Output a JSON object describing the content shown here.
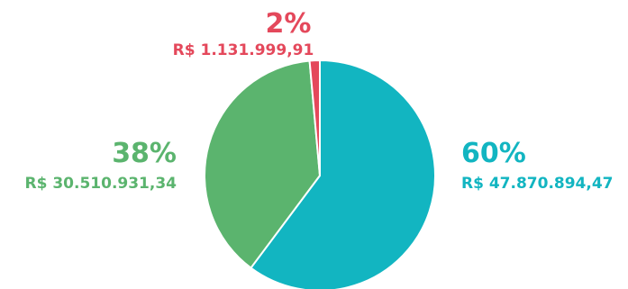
{
  "chart_data": {
    "type": "pie",
    "slices": [
      {
        "percent_label": "60%",
        "amount_label": "R$ 47.870.894,47",
        "value": 47870894.47,
        "color": "#12b5c1"
      },
      {
        "percent_label": "38%",
        "amount_label": "R$ 30.510.931,34",
        "value": 30510931.34,
        "color": "#5bb46e"
      },
      {
        "percent_label": "2%",
        "amount_label": "R$ 1.131.999,91",
        "value": 1131999.91,
        "color": "#e4485b"
      }
    ],
    "start_angle_deg": 0,
    "direction": "clockwise",
    "legend": "none",
    "label_placement": "outside"
  }
}
